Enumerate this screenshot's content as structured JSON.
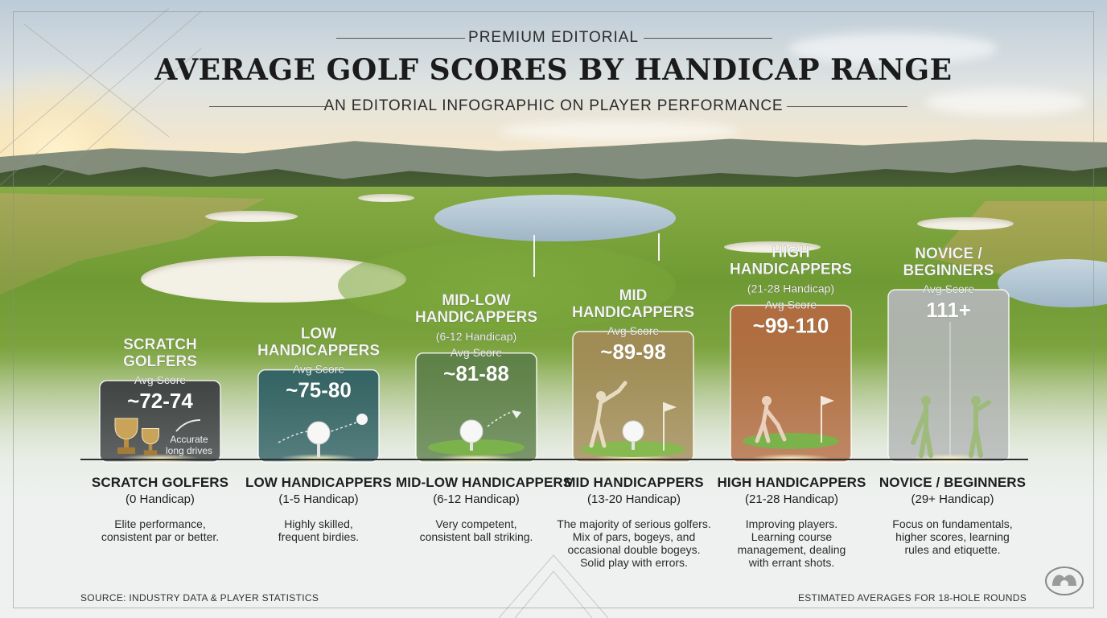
{
  "header": {
    "eyebrow": "PREMIUM EDITORIAL",
    "title": "AVERAGE GOLF SCORES BY HANDICAP RANGE",
    "subtitle": "AN EDITORIAL INFOGRAPHIC ON PLAYER PERFORMANCE"
  },
  "footer": {
    "source": "SOURCE: INDUSTRY DATA & PLAYER STATISTICS",
    "note": "ESTIMATED AVERAGES FOR 18-HOLE ROUNDS"
  },
  "colors": {
    "scratch": "#3b3e41",
    "low": "#2e5f63",
    "mid_low": "#5c7f48",
    "mid": "#a38b57",
    "high": "#b46a40",
    "novice": "#b3b6b6"
  },
  "chart_data": {
    "type": "bar",
    "categories": [
      "SCRATCH GOLFERS",
      "LOW HANDICAPPERS",
      "MID-LOW HANDICAPPERS",
      "MID HANDICAPPERS",
      "HIGH HANDICAPPERS",
      "NOVICE / BEGINNERS"
    ],
    "score_label": "Avg Score",
    "series": [
      {
        "values": [
          73,
          77.5,
          84.5,
          93.5,
          104.5,
          111
        ]
      }
    ],
    "bars": [
      {
        "top_label": [
          "SCRATCH",
          "GOLFERS"
        ],
        "range_label": "",
        "score": "~72-74",
        "value": 73,
        "color": "#3b3e41",
        "icon": "trophy-icons",
        "caption": [
          "Accurate",
          "long drives"
        ]
      },
      {
        "top_label": [
          "LOW",
          "HANDICAPPERS"
        ],
        "range_label": "",
        "score": "~75-80",
        "value": 77.5,
        "color": "#2e5f63",
        "icon": "golf-ball-icon",
        "caption": []
      },
      {
        "top_label": [
          "MID-LOW",
          "HANDICAPPERS"
        ],
        "range_label": "(6-12 Handicap)",
        "score": "~81-88",
        "value": 84.5,
        "color": "#5c7f48",
        "icon": "tee-shot-icon",
        "caption": []
      },
      {
        "top_label": [
          "MID",
          "HANDICAPPERS"
        ],
        "range_label": "",
        "score": "~89-98",
        "value": 93.5,
        "color": "#a38b57",
        "icon": "golfer-swing-icon",
        "caption": []
      },
      {
        "top_label": [
          "HIGH",
          "HANDICAPPERS"
        ],
        "range_label": "(21-28 Handicap)",
        "score": "~99-110",
        "value": 104.5,
        "color": "#b46a40",
        "icon": "putting-golfer-icon",
        "caption": []
      },
      {
        "top_label": [
          "NOVICE /",
          "BEGINNERS"
        ],
        "range_label": "",
        "score": "111+",
        "value": 111,
        "color": "#b3b6b6",
        "icon": "beginner-golfers-icon",
        "caption": []
      }
    ],
    "details": [
      {
        "name": "SCRATCH GOLFERS",
        "handicap": "(0 Handicap)",
        "description": "Elite performance, consistent par or better."
      },
      {
        "name": "LOW HANDICAPPERS",
        "handicap": "(1-5 Handicap)",
        "description": "Highly skilled, frequent birdies."
      },
      {
        "name": "MID-LOW HANDICAPPERS",
        "handicap": "(6-12 Handicap)",
        "description": "Very competent, consistent ball striking."
      },
      {
        "name": "MID HANDICAPPERS",
        "handicap": "(13-20 Handicap)",
        "description": "The majority of serious golfers. Mix of pars, bogeys, and occasional double bogeys. Solid play with errors."
      },
      {
        "name": "HIGH HANDICAPPERS",
        "handicap": "(21-28 Handicap)",
        "description": "Improving players. Learning course management, dealing with errant shots."
      },
      {
        "name": "NOVICE / BEGINNERS",
        "handicap": "(29+ Handicap)",
        "description": "Focus on fundamentals, higher scores, learning rules and etiquette."
      }
    ]
  }
}
